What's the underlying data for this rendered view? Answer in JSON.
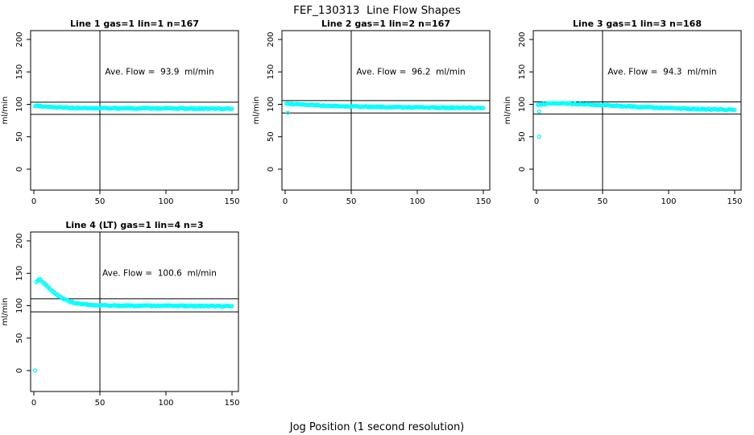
{
  "figure": {
    "title": "FEF_130313  Line Flow Shapes",
    "xlabel": "Jog Position (1 second resolution)",
    "background": "#FFFFFF",
    "axis_color": "#000000",
    "point_color": "#00FFFF"
  },
  "chart_data": [
    {
      "type": "scatter",
      "title": "Line 1 gas=1 lin=1 n=167",
      "annotation": "Ave. Flow =  93.9  ml/min",
      "ave_flow_ml_min": 93.9,
      "n": 167,
      "ylabel": "ml/min",
      "xlim": [
        0,
        150
      ],
      "ylim": [
        0,
        200
      ],
      "x_ticks": [
        0,
        50,
        100,
        150
      ],
      "y_ticks": [
        0,
        50,
        100,
        150,
        200
      ],
      "vline_x": 50,
      "limit_lines": [
        84.5,
        103.3
      ],
      "marker": "open-circle",
      "color": "#00FFFF",
      "points": [
        [
          1,
          96.5
        ],
        [
          2,
          97.5
        ],
        [
          3,
          98
        ],
        [
          4,
          97.8
        ],
        [
          5,
          97.2
        ],
        [
          6,
          96.8
        ],
        [
          8,
          96.3
        ],
        [
          10,
          96
        ],
        [
          13,
          95.6
        ],
        [
          16,
          95.3
        ],
        [
          20,
          95
        ],
        [
          25,
          94.8
        ],
        [
          30,
          94.6
        ],
        [
          40,
          94.3
        ],
        [
          50,
          94.1
        ],
        [
          60,
          94
        ],
        [
          70,
          93.9
        ],
        [
          80,
          93.8
        ],
        [
          90,
          93.7
        ],
        [
          100,
          93.6
        ],
        [
          110,
          93.5
        ],
        [
          120,
          93.4
        ],
        [
          130,
          93.3
        ],
        [
          140,
          93.1
        ],
        [
          150,
          93
        ]
      ],
      "outliers": []
    },
    {
      "type": "scatter",
      "title": "Line 2 gas=1 lin=2 n=167",
      "annotation": "Ave. Flow =  96.2  ml/min",
      "ave_flow_ml_min": 96.2,
      "n": 167,
      "ylabel": "ml/min",
      "xlim": [
        0,
        150
      ],
      "ylim": [
        0,
        200
      ],
      "x_ticks": [
        0,
        50,
        100,
        150
      ],
      "y_ticks": [
        0,
        50,
        100,
        150,
        200
      ],
      "vline_x": 50,
      "limit_lines": [
        86.6,
        105.8
      ],
      "marker": "open-circle",
      "color": "#00FFFF",
      "points": [
        [
          1,
          100.5
        ],
        [
          3,
          101
        ],
        [
          4,
          100.8
        ],
        [
          5,
          100.5
        ],
        [
          7,
          100.2
        ],
        [
          10,
          99.8
        ],
        [
          15,
          99.3
        ],
        [
          20,
          98.8
        ],
        [
          25,
          98.4
        ],
        [
          30,
          98
        ],
        [
          40,
          97.4
        ],
        [
          50,
          96.9
        ],
        [
          60,
          96.4
        ],
        [
          70,
          96
        ],
        [
          80,
          95.7
        ],
        [
          90,
          95.4
        ],
        [
          100,
          95.2
        ],
        [
          110,
          95
        ],
        [
          120,
          94.8
        ],
        [
          130,
          94.6
        ],
        [
          140,
          94.5
        ],
        [
          150,
          94.3
        ]
      ],
      "outliers": [
        [
          2,
          87
        ]
      ]
    },
    {
      "type": "scatter",
      "title": "Line 3 gas=1 lin=3 n=168",
      "annotation": "Ave. Flow =  94.3  ml/min",
      "ave_flow_ml_min": 94.3,
      "n": 168,
      "ylabel": "ml/min",
      "xlim": [
        0,
        150
      ],
      "ylim": [
        0,
        200
      ],
      "x_ticks": [
        0,
        50,
        100,
        150
      ],
      "y_ticks": [
        0,
        50,
        100,
        150,
        200
      ],
      "vline_x": 50,
      "limit_lines": [
        84.9,
        103.7
      ],
      "marker": "open-circle",
      "color": "#00FFFF",
      "points": [
        [
          1,
          98.5
        ],
        [
          3,
          99.5
        ],
        [
          5,
          100.3
        ],
        [
          8,
          100.8
        ],
        [
          12,
          101.2
        ],
        [
          16,
          101.3
        ],
        [
          20,
          101.2
        ],
        [
          25,
          101
        ],
        [
          30,
          100.7
        ],
        [
          35,
          100.3
        ],
        [
          40,
          99.8
        ],
        [
          45,
          99.3
        ],
        [
          50,
          98.8
        ],
        [
          60,
          97.8
        ],
        [
          70,
          96.8
        ],
        [
          80,
          95.8
        ],
        [
          90,
          94.9
        ],
        [
          100,
          94.1
        ],
        [
          110,
          93.4
        ],
        [
          120,
          92.8
        ],
        [
          130,
          92.3
        ],
        [
          140,
          91.9
        ],
        [
          150,
          91.6
        ]
      ],
      "outliers": [
        [
          2,
          89
        ],
        [
          2,
          50
        ]
      ]
    },
    {
      "type": "scatter",
      "title": "Line 4 (LT) gas=1 lin=4 n=3",
      "annotation": "Ave. Flow =  100.6  ml/min",
      "ave_flow_ml_min": 100.6,
      "n": 3,
      "ylabel": "ml/min",
      "xlim": [
        0,
        150
      ],
      "ylim": [
        0,
        200
      ],
      "x_ticks": [
        0,
        50,
        100,
        150
      ],
      "y_ticks": [
        0,
        50,
        100,
        150,
        200
      ],
      "vline_x": 50,
      "limit_lines": [
        90.5,
        110.7
      ],
      "marker": "open-circle",
      "color": "#00FFFF",
      "points": [
        [
          2,
          136
        ],
        [
          3,
          139
        ],
        [
          4,
          141
        ],
        [
          5,
          140
        ],
        [
          7,
          136
        ],
        [
          9,
          132
        ],
        [
          11,
          128
        ],
        [
          13,
          124
        ],
        [
          15,
          121
        ],
        [
          18,
          116
        ],
        [
          21,
          112
        ],
        [
          24,
          109
        ],
        [
          27,
          107
        ],
        [
          30,
          105
        ],
        [
          34,
          103.5
        ],
        [
          38,
          102.3
        ],
        [
          42,
          101.5
        ],
        [
          46,
          101
        ],
        [
          50,
          100.7
        ],
        [
          55,
          100.4
        ],
        [
          60,
          100.2
        ],
        [
          70,
          100
        ],
        [
          80,
          100
        ],
        [
          90,
          99.8
        ],
        [
          100,
          99.8
        ],
        [
          110,
          99.7
        ],
        [
          120,
          99.6
        ],
        [
          130,
          99.5
        ],
        [
          140,
          99.3
        ],
        [
          150,
          99.2
        ]
      ],
      "outliers": [
        [
          1,
          0
        ]
      ]
    }
  ]
}
